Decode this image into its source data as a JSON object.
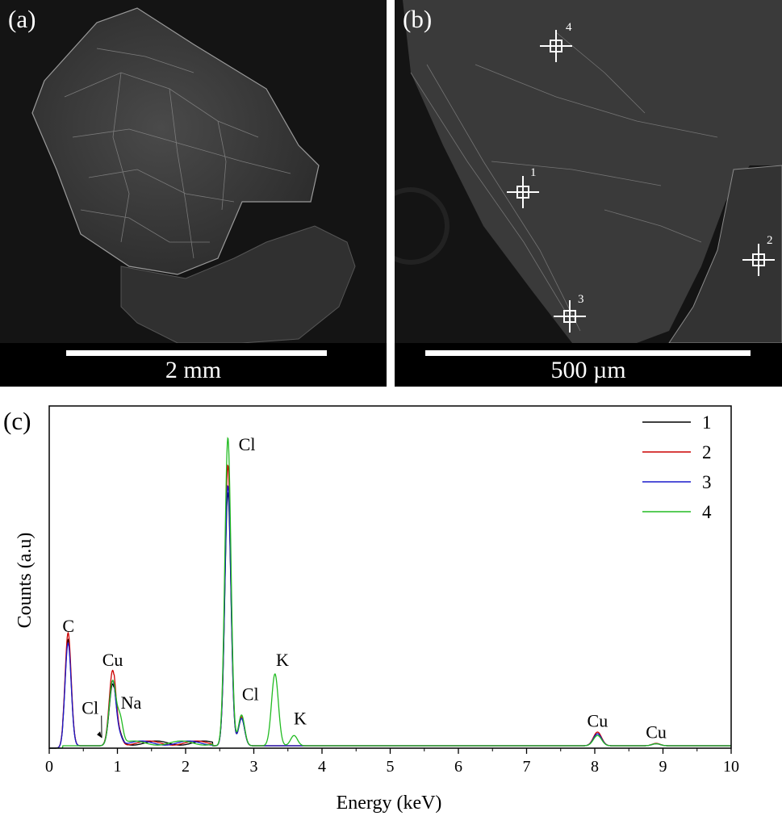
{
  "panels": {
    "a": {
      "label": "(a)",
      "scalebar": "2 mm"
    },
    "b": {
      "label": "(b)",
      "scalebar": "500 µm",
      "markers": [
        "1",
        "2",
        "3",
        "4"
      ]
    }
  },
  "chart_data": {
    "type": "line",
    "panel_label": "(c)",
    "xlabel": "Energy (keV)",
    "ylabel": "Counts (a.u)",
    "xlim": [
      0,
      10
    ],
    "xticks": [
      "0",
      "1",
      "2",
      "3",
      "4",
      "5",
      "6",
      "7",
      "8",
      "9",
      "10"
    ],
    "yticks": [],
    "legend_position": "top-right",
    "series": [
      {
        "name": "1",
        "color": "#000000",
        "peaks": [
          [
            0.277,
            0.31,
            0.045
          ],
          [
            0.93,
            0.18,
            0.05
          ],
          [
            1.04,
            0.02,
            0.04
          ],
          [
            2.62,
            0.74,
            0.045
          ],
          [
            2.82,
            0.08,
            0.045
          ],
          [
            3.31,
            0.0,
            0.05
          ],
          [
            3.59,
            0.0,
            0.05
          ],
          [
            8.04,
            0.035,
            0.06
          ],
          [
            8.9,
            0.006,
            0.06
          ]
        ]
      },
      {
        "name": "2",
        "color": "#cc0000",
        "peaks": [
          [
            0.277,
            0.33,
            0.045
          ],
          [
            0.93,
            0.22,
            0.05
          ],
          [
            1.04,
            0.02,
            0.04
          ],
          [
            2.62,
            0.82,
            0.045
          ],
          [
            2.82,
            0.085,
            0.045
          ],
          [
            3.31,
            0.0,
            0.05
          ],
          [
            3.59,
            0.0,
            0.05
          ],
          [
            8.04,
            0.04,
            0.06
          ],
          [
            8.9,
            0.007,
            0.06
          ]
        ]
      },
      {
        "name": "3",
        "color": "#1a1acc",
        "peaks": [
          [
            0.277,
            0.3,
            0.045
          ],
          [
            0.93,
            0.19,
            0.05
          ],
          [
            1.04,
            0.02,
            0.04
          ],
          [
            2.62,
            0.76,
            0.045
          ],
          [
            2.82,
            0.08,
            0.045
          ],
          [
            3.31,
            0.0,
            0.05
          ],
          [
            3.59,
            0.0,
            0.05
          ],
          [
            8.04,
            0.035,
            0.06
          ],
          [
            8.9,
            0.006,
            0.06
          ]
        ]
      },
      {
        "name": "4",
        "color": "#22bb22",
        "peaks": [
          [
            0.277,
            0.0,
            0.045
          ],
          [
            0.93,
            0.19,
            0.05
          ],
          [
            1.04,
            0.07,
            0.04
          ],
          [
            2.62,
            0.9,
            0.045
          ],
          [
            2.82,
            0.09,
            0.045
          ],
          [
            3.31,
            0.21,
            0.05
          ],
          [
            3.59,
            0.03,
            0.05
          ],
          [
            8.04,
            0.03,
            0.06
          ],
          [
            8.9,
            0.006,
            0.06
          ]
        ]
      }
    ],
    "annotations": [
      {
        "text": "C",
        "x": 0.28,
        "y": 0.34
      },
      {
        "text": "Cu",
        "x": 0.93,
        "y": 0.24
      },
      {
        "text": "Cl",
        "x": 0.6,
        "y": 0.1,
        "arrow_to": [
          0.77,
          0.03
        ]
      },
      {
        "text": "Na",
        "x": 1.2,
        "y": 0.115
      },
      {
        "text": "Cl",
        "x": 2.9,
        "y": 0.87
      },
      {
        "text": "Cl",
        "x": 2.95,
        "y": 0.14
      },
      {
        "text": "K",
        "x": 3.42,
        "y": 0.24
      },
      {
        "text": "K",
        "x": 3.68,
        "y": 0.07
      },
      {
        "text": "Cu",
        "x": 8.04,
        "y": 0.062
      },
      {
        "text": "Cu",
        "x": 8.9,
        "y": 0.03
      }
    ]
  }
}
